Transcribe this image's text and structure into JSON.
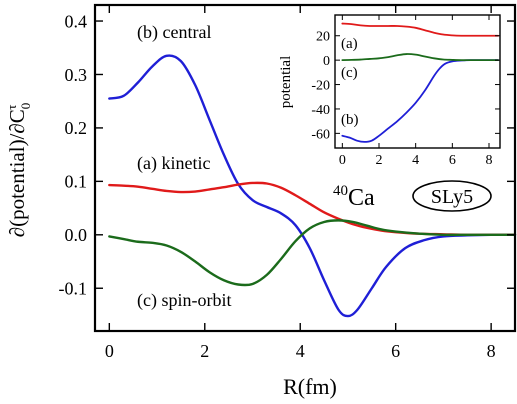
{
  "chart_data": [
    {
      "type": "line",
      "xlabel": "R(fm)",
      "ylabel": "∂(potential)/∂C",
      "ylabel_sub": "0",
      "ylabel_sup": "τ",
      "xlim": [
        -0.3,
        8.5
      ],
      "ylim": [
        -0.18,
        0.43
      ],
      "xticks": [
        0,
        2,
        4,
        6,
        8
      ],
      "yticks": [
        0.4,
        0.3,
        0.2,
        0.1,
        0.0,
        -0.1
      ],
      "ytick_labels": [
        "0.4",
        "0.3",
        "0.2",
        "0.1",
        "0.0",
        "-0.1"
      ],
      "grid": false,
      "nucleus": {
        "mass_number": "40",
        "symbol": "Ca"
      },
      "force_label": "SLy5",
      "series": [
        {
          "name": "(b) central",
          "color": "#1f1fd6",
          "x": [
            0,
            0.3,
            0.6,
            0.9,
            1.2,
            1.5,
            1.8,
            2.1,
            2.4,
            2.7,
            3.0,
            3.3,
            3.6,
            3.9,
            4.2,
            4.5,
            4.8,
            5.0,
            5.2,
            5.5,
            5.8,
            6.2,
            6.6,
            7.0,
            7.5,
            8.0,
            8.5
          ],
          "y": [
            0.255,
            0.26,
            0.285,
            0.315,
            0.335,
            0.325,
            0.28,
            0.215,
            0.15,
            0.095,
            0.065,
            0.052,
            0.04,
            0.018,
            -0.025,
            -0.085,
            -0.14,
            -0.152,
            -0.14,
            -0.1,
            -0.06,
            -0.025,
            -0.01,
            -0.003,
            -0.001,
            0.0,
            0.0
          ]
        },
        {
          "name": "(a) kinetic",
          "color": "#e01a1a",
          "x": [
            0,
            0.3,
            0.6,
            0.9,
            1.2,
            1.5,
            1.8,
            2.1,
            2.4,
            2.7,
            3.0,
            3.3,
            3.6,
            3.9,
            4.2,
            4.5,
            4.8,
            5.1,
            5.4,
            5.7,
            6.0,
            6.5,
            7.0,
            7.5,
            8.0,
            8.5
          ],
          "y": [
            0.093,
            0.092,
            0.09,
            0.086,
            0.082,
            0.08,
            0.081,
            0.085,
            0.089,
            0.094,
            0.097,
            0.096,
            0.088,
            0.074,
            0.058,
            0.042,
            0.03,
            0.02,
            0.013,
            0.008,
            0.005,
            0.002,
            0.001,
            0.0,
            0.0,
            0.0
          ]
        },
        {
          "name": "(c) spin-orbit",
          "color": "#1b6b1b",
          "x": [
            0,
            0.3,
            0.6,
            0.9,
            1.2,
            1.5,
            1.8,
            2.1,
            2.4,
            2.7,
            3.0,
            3.3,
            3.6,
            3.9,
            4.2,
            4.5,
            4.8,
            5.1,
            5.4,
            5.7,
            6.0,
            6.5,
            7.0,
            7.5,
            8.0,
            8.5
          ],
          "y": [
            -0.003,
            -0.008,
            -0.013,
            -0.015,
            -0.02,
            -0.032,
            -0.05,
            -0.07,
            -0.085,
            -0.093,
            -0.092,
            -0.075,
            -0.045,
            -0.012,
            0.012,
            0.024,
            0.027,
            0.024,
            0.017,
            0.01,
            0.006,
            0.002,
            0.0,
            0.0,
            0.0,
            0.0
          ]
        }
      ]
    },
    {
      "type": "line",
      "xlabel": "",
      "ylabel": "potential",
      "xlim": [
        -0.4,
        8.6
      ],
      "ylim": [
        -72,
        37
      ],
      "xticks": [
        0,
        2,
        4,
        6,
        8
      ],
      "yticks": [
        20,
        0,
        -20,
        -40,
        -60
      ],
      "grid": false,
      "series": [
        {
          "name": "(a)",
          "color": "#e01a1a",
          "x": [
            0,
            0.5,
            1.0,
            1.5,
            2.0,
            2.5,
            3.0,
            3.5,
            4.0,
            4.5,
            5.0,
            5.5,
            6.0,
            6.5,
            7.0,
            8.0,
            8.5
          ],
          "y": [
            30,
            29.5,
            28.5,
            28,
            28,
            28,
            28,
            27.5,
            26.5,
            24.5,
            22.5,
            21,
            20.3,
            20,
            20,
            20,
            20
          ]
        },
        {
          "name": "(b)",
          "color": "#1f1fd6",
          "x": [
            0,
            0.4,
            0.8,
            1.2,
            1.6,
            2.0,
            2.5,
            3.0,
            3.5,
            4.0,
            4.5,
            5.0,
            5.3,
            5.6,
            6.0,
            6.5,
            7.0,
            8.0,
            8.5
          ],
          "y": [
            -62,
            -63.5,
            -66,
            -67,
            -66,
            -62,
            -56,
            -50,
            -43,
            -35,
            -25,
            -13,
            -7,
            -3,
            -1,
            -0.3,
            0,
            0,
            0
          ]
        },
        {
          "name": "(c)",
          "color": "#1b6b1b",
          "x": [
            0,
            0.5,
            1.0,
            1.5,
            2.0,
            2.5,
            3.0,
            3.5,
            4.0,
            4.5,
            5.0,
            5.5,
            6.0,
            6.5,
            7.0,
            8.0,
            8.5
          ],
          "y": [
            0,
            0.2,
            0.5,
            1,
            1.5,
            2.5,
            4,
            5,
            4.5,
            3,
            1.5,
            0.5,
            0.2,
            0,
            0,
            0,
            0
          ]
        }
      ]
    }
  ]
}
